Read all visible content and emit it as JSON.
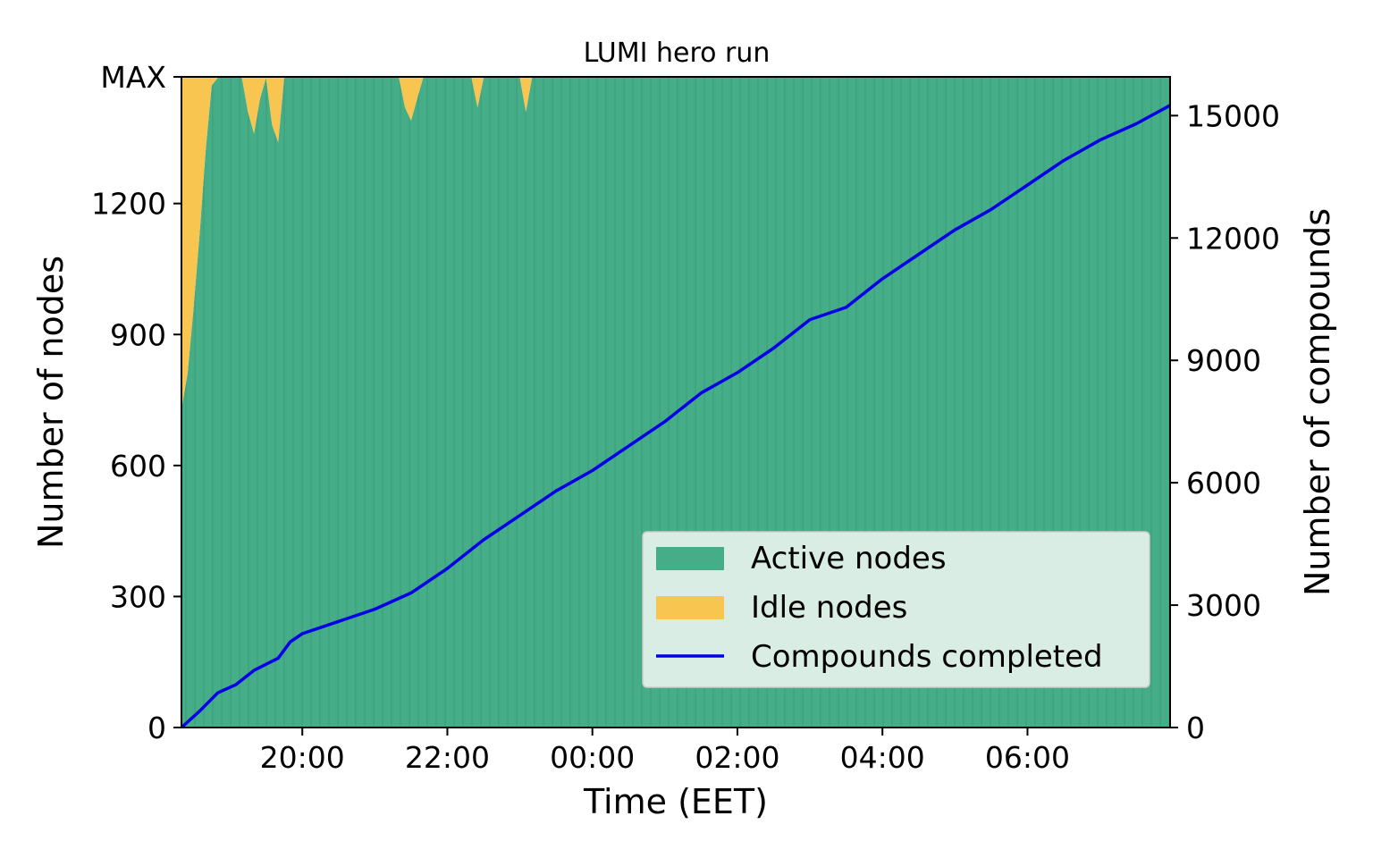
{
  "chart_data": {
    "type": "area",
    "title": "LUMI hero run",
    "xlabel": "Time (EET)",
    "ylabel_left": "Number of nodes",
    "ylabel_right": "Number of compounds",
    "x_range": [
      "18:20",
      "07:58"
    ],
    "x_ticks": [
      "20:00",
      "22:00",
      "00:00",
      "02:00",
      "04:00",
      "06:00"
    ],
    "y_left": {
      "range": [
        0,
        1490
      ],
      "ticks": [
        0,
        300,
        600,
        900,
        1200
      ],
      "max_label": "MAX"
    },
    "y_right": {
      "range": [
        0,
        15950
      ],
      "ticks": [
        0,
        3000,
        6000,
        9000,
        12000,
        15000
      ]
    },
    "legend": {
      "placement": "lower-right",
      "entries": [
        "Active nodes",
        "Idle nodes",
        "Compounds completed"
      ]
    },
    "colors": {
      "active": "#45ad87",
      "idle": "#f7c550",
      "line": "#0000e6"
    },
    "series": [
      {
        "name": "Active nodes",
        "kind": "stacked-area",
        "points": [
          [
            "18:20",
            730
          ],
          [
            "18:25",
            810
          ],
          [
            "18:30",
            960
          ],
          [
            "18:35",
            1130
          ],
          [
            "18:40",
            1320
          ],
          [
            "18:45",
            1470
          ],
          [
            "18:50",
            1488
          ],
          [
            "19:10",
            1488
          ],
          [
            "19:15",
            1410
          ],
          [
            "19:20",
            1360
          ],
          [
            "19:25",
            1440
          ],
          [
            "19:30",
            1488
          ],
          [
            "19:35",
            1380
          ],
          [
            "19:40",
            1340
          ],
          [
            "19:45",
            1488
          ],
          [
            "21:20",
            1488
          ],
          [
            "21:25",
            1420
          ],
          [
            "21:30",
            1390
          ],
          [
            "21:35",
            1440
          ],
          [
            "21:40",
            1488
          ],
          [
            "22:20",
            1488
          ],
          [
            "22:25",
            1420
          ],
          [
            "22:30",
            1488
          ],
          [
            "23:00",
            1488
          ],
          [
            "23:05",
            1410
          ],
          [
            "23:10",
            1488
          ],
          [
            "07:58",
            1488
          ]
        ]
      },
      {
        "name": "Idle nodes",
        "kind": "stacked-area",
        "points": [
          [
            "18:20",
            760
          ],
          [
            "18:25",
            680
          ],
          [
            "18:30",
            530
          ],
          [
            "18:35",
            360
          ],
          [
            "18:40",
            170
          ],
          [
            "18:45",
            20
          ],
          [
            "18:50",
            2
          ],
          [
            "19:10",
            2
          ],
          [
            "19:15",
            80
          ],
          [
            "19:20",
            130
          ],
          [
            "19:25",
            50
          ],
          [
            "19:30",
            2
          ],
          [
            "19:35",
            110
          ],
          [
            "19:40",
            150
          ],
          [
            "19:45",
            2
          ],
          [
            "21:20",
            2
          ],
          [
            "21:25",
            70
          ],
          [
            "21:30",
            100
          ],
          [
            "21:35",
            50
          ],
          [
            "21:40",
            2
          ],
          [
            "22:20",
            2
          ],
          [
            "22:25",
            70
          ],
          [
            "22:30",
            2
          ],
          [
            "23:00",
            2
          ],
          [
            "23:05",
            80
          ],
          [
            "23:10",
            2
          ],
          [
            "07:58",
            2
          ]
        ]
      },
      {
        "name": "Compounds completed",
        "kind": "line",
        "points": [
          [
            "18:20",
            0
          ],
          [
            "18:35",
            400
          ],
          [
            "18:50",
            850
          ],
          [
            "19:05",
            1050
          ],
          [
            "19:20",
            1400
          ],
          [
            "19:40",
            1700
          ],
          [
            "19:50",
            2100
          ],
          [
            "20:00",
            2300
          ],
          [
            "20:30",
            2600
          ],
          [
            "21:00",
            2900
          ],
          [
            "21:30",
            3300
          ],
          [
            "22:00",
            3900
          ],
          [
            "22:30",
            4600
          ],
          [
            "23:00",
            5200
          ],
          [
            "23:30",
            5800
          ],
          [
            "00:00",
            6300
          ],
          [
            "00:30",
            6900
          ],
          [
            "01:00",
            7500
          ],
          [
            "01:30",
            8200
          ],
          [
            "02:00",
            8700
          ],
          [
            "02:30",
            9300
          ],
          [
            "03:00",
            10000
          ],
          [
            "03:30",
            10300
          ],
          [
            "04:00",
            11000
          ],
          [
            "04:30",
            11600
          ],
          [
            "05:00",
            12200
          ],
          [
            "05:30",
            12700
          ],
          [
            "06:00",
            13300
          ],
          [
            "06:30",
            13900
          ],
          [
            "07:00",
            14400
          ],
          [
            "07:30",
            14800
          ],
          [
            "07:58",
            15250
          ]
        ]
      }
    ]
  }
}
